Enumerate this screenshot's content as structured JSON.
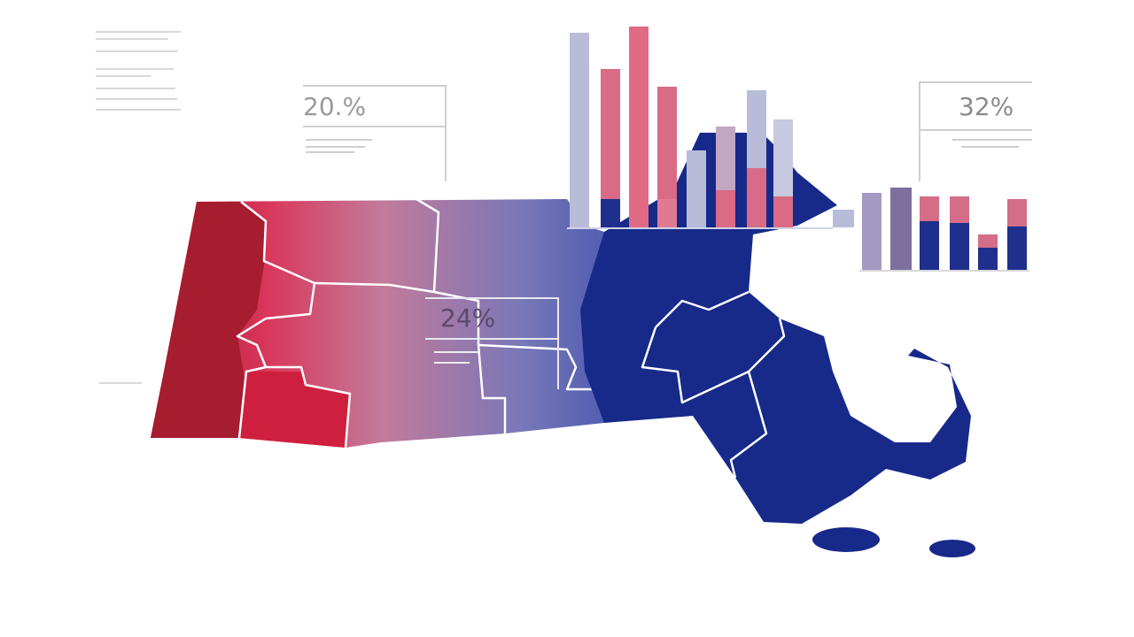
{
  "labels": {
    "left": "20.%",
    "center": "24%",
    "right": "32%"
  }
}
